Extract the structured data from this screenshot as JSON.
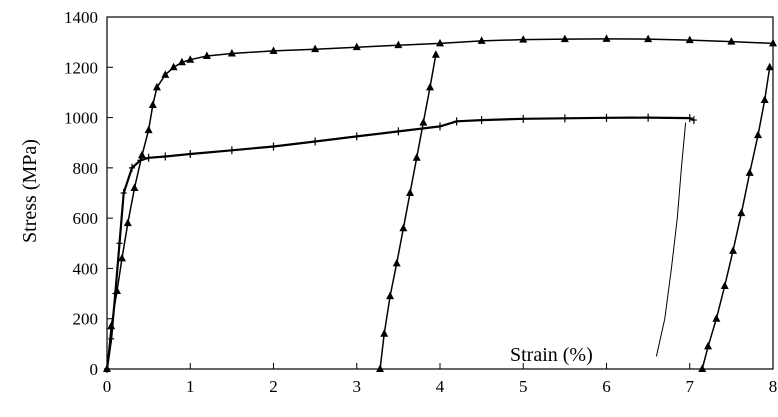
{
  "chart_data": {
    "type": "scatter",
    "title": "",
    "xlabel": "",
    "ylabel": "Stress (MPa)",
    "annotation": "Strain (%)",
    "xlim": [
      0,
      8
    ],
    "ylim": [
      0,
      1400
    ],
    "xticks": [
      "0",
      "1",
      "2",
      "3",
      "4",
      "5",
      "6",
      "7",
      "8"
    ],
    "yticks": [
      "0",
      "200",
      "400",
      "600",
      "800",
      "1000",
      "1200",
      "1400"
    ],
    "grid": false,
    "legend": "none",
    "series": [
      {
        "marker": "triangle",
        "points": [
          [
            0.0,
            0
          ],
          [
            0.05,
            170
          ],
          [
            0.12,
            310
          ],
          [
            0.18,
            440
          ],
          [
            0.25,
            580
          ],
          [
            0.33,
            720
          ],
          [
            0.42,
            850
          ],
          [
            0.5,
            950
          ],
          [
            0.55,
            1050
          ],
          [
            0.6,
            1120
          ],
          [
            0.7,
            1170
          ],
          [
            0.8,
            1200
          ],
          [
            0.9,
            1220
          ],
          [
            1.0,
            1230
          ],
          [
            1.2,
            1245
          ],
          [
            1.5,
            1255
          ],
          [
            2.0,
            1265
          ],
          [
            2.5,
            1272
          ],
          [
            3.0,
            1280
          ],
          [
            3.5,
            1288
          ],
          [
            4.0,
            1295
          ],
          [
            4.5,
            1305
          ],
          [
            5.0,
            1310
          ],
          [
            5.5,
            1312
          ],
          [
            6.0,
            1313
          ],
          [
            6.5,
            1312
          ],
          [
            7.0,
            1308
          ],
          [
            7.5,
            1302
          ],
          [
            8.0,
            1295
          ],
          [
            3.28,
            0
          ],
          [
            3.33,
            140
          ],
          [
            3.4,
            290
          ],
          [
            3.48,
            420
          ],
          [
            3.56,
            560
          ],
          [
            3.64,
            700
          ],
          [
            3.72,
            840
          ],
          [
            3.8,
            980
          ],
          [
            3.88,
            1120
          ],
          [
            3.95,
            1250
          ],
          [
            7.15,
            0
          ],
          [
            7.22,
            90
          ],
          [
            7.32,
            200
          ],
          [
            7.42,
            330
          ],
          [
            7.52,
            470
          ],
          [
            7.62,
            620
          ],
          [
            7.72,
            780
          ],
          [
            7.82,
            930
          ],
          [
            7.9,
            1070
          ],
          [
            7.96,
            1200
          ]
        ]
      },
      {
        "marker": "cross",
        "points": [
          [
            0.0,
            0
          ],
          [
            0.05,
            120
          ],
          [
            0.1,
            300
          ],
          [
            0.15,
            500
          ],
          [
            0.2,
            700
          ],
          [
            0.3,
            800
          ],
          [
            0.4,
            830
          ],
          [
            0.5,
            840
          ],
          [
            0.7,
            845
          ],
          [
            1.0,
            855
          ],
          [
            1.5,
            870
          ],
          [
            2.0,
            885
          ],
          [
            2.5,
            905
          ],
          [
            3.0,
            925
          ],
          [
            3.5,
            945
          ],
          [
            4.0,
            965
          ],
          [
            4.2,
            985
          ],
          [
            4.5,
            990
          ],
          [
            5.0,
            995
          ],
          [
            5.5,
            997
          ],
          [
            6.0,
            999
          ],
          [
            6.5,
            1000
          ],
          [
            7.0,
            998
          ],
          [
            7.05,
            990
          ]
        ]
      },
      {
        "marker": "line",
        "points": [
          [
            6.95,
            980
          ],
          [
            6.9,
            800
          ],
          [
            6.85,
            600
          ],
          [
            6.78,
            400
          ],
          [
            6.7,
            200
          ],
          [
            6.6,
            50
          ]
        ]
      }
    ]
  }
}
